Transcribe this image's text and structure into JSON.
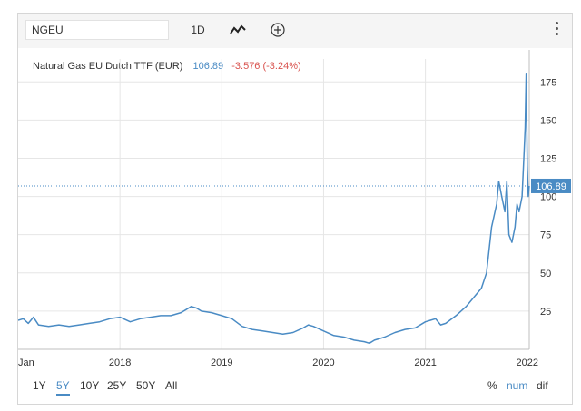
{
  "toolbar": {
    "symbol": "NGEU",
    "interval": "1D",
    "chart_style_icon": "line-chart-icon",
    "add_icon": "plus-circle-icon",
    "menu_icon": "kebab-menu-icon"
  },
  "legend": {
    "name": "Natural Gas EU Dutch TTF (EUR)",
    "price": "106.89",
    "change": "-3.576 (-3.24%)"
  },
  "price_tag": "106.89",
  "ranges": [
    "1Y",
    "5Y",
    "10Y",
    "25Y",
    "50Y",
    "All"
  ],
  "active_range": "5Y",
  "modes": [
    "%",
    "num",
    "dif"
  ],
  "active_mode": "num",
  "colors": {
    "line": "#4a8bc4",
    "accent": "#4a8bc4",
    "negative": "#d9534f",
    "grid": "#e6e6e6"
  },
  "chart_data": {
    "type": "line",
    "title": "Natural Gas EU Dutch TTF (EUR)",
    "x_tick_labels": [
      "Jan",
      "2018",
      "2019",
      "2020",
      "2021",
      "2022"
    ],
    "x_tick_values": [
      2017.0,
      2018.0,
      2019.0,
      2020.0,
      2021.0,
      2022.0
    ],
    "y_ticks": [
      25,
      50,
      75,
      100,
      125,
      150,
      175
    ],
    "ylim": [
      0,
      190
    ],
    "xlim": [
      2017.0,
      2022.02
    ],
    "grid": true,
    "axis_side": "right",
    "last_value": 106.89,
    "reference_line": 106.89,
    "series": [
      {
        "x": [
          2017.0,
          2017.05,
          2017.1,
          2017.15,
          2017.2,
          2017.3,
          2017.4,
          2017.5,
          2017.6,
          2017.7,
          2017.8,
          2017.9,
          2018.0,
          2018.1,
          2018.2,
          2018.3,
          2018.4,
          2018.5,
          2018.6,
          2018.7,
          2018.75,
          2018.8,
          2018.9,
          2019.0,
          2019.1,
          2019.2,
          2019.3,
          2019.4,
          2019.5,
          2019.6,
          2019.7,
          2019.8,
          2019.85,
          2019.9,
          2020.0,
          2020.1,
          2020.2,
          2020.3,
          2020.4,
          2020.45,
          2020.5,
          2020.6,
          2020.7,
          2020.8,
          2020.9,
          2021.0,
          2021.05,
          2021.1,
          2021.15,
          2021.2,
          2021.3,
          2021.4,
          2021.5,
          2021.55,
          2021.6,
          2021.65,
          2021.7,
          2021.72,
          2021.75,
          2021.78,
          2021.8,
          2021.82,
          2021.85,
          2021.88,
          2021.9,
          2021.92,
          2021.95,
          2021.97,
          2021.98,
          2021.99,
          2022.0,
          2022.01,
          2022.02
        ],
        "values": [
          19,
          20,
          17,
          21,
          16,
          15,
          16,
          15,
          16,
          17,
          18,
          20,
          21,
          18,
          20,
          21,
          22,
          22,
          24,
          28,
          27,
          25,
          24,
          22,
          20,
          15,
          13,
          12,
          11,
          10,
          11,
          14,
          16,
          15,
          12,
          9,
          8,
          6,
          5,
          4,
          6,
          8,
          11,
          13,
          14,
          18,
          19,
          20,
          16,
          17,
          22,
          28,
          36,
          40,
          50,
          80,
          95,
          110,
          100,
          90,
          110,
          75,
          70,
          80,
          95,
          90,
          100,
          130,
          145,
          180,
          120,
          100,
          106.89
        ]
      }
    ]
  }
}
